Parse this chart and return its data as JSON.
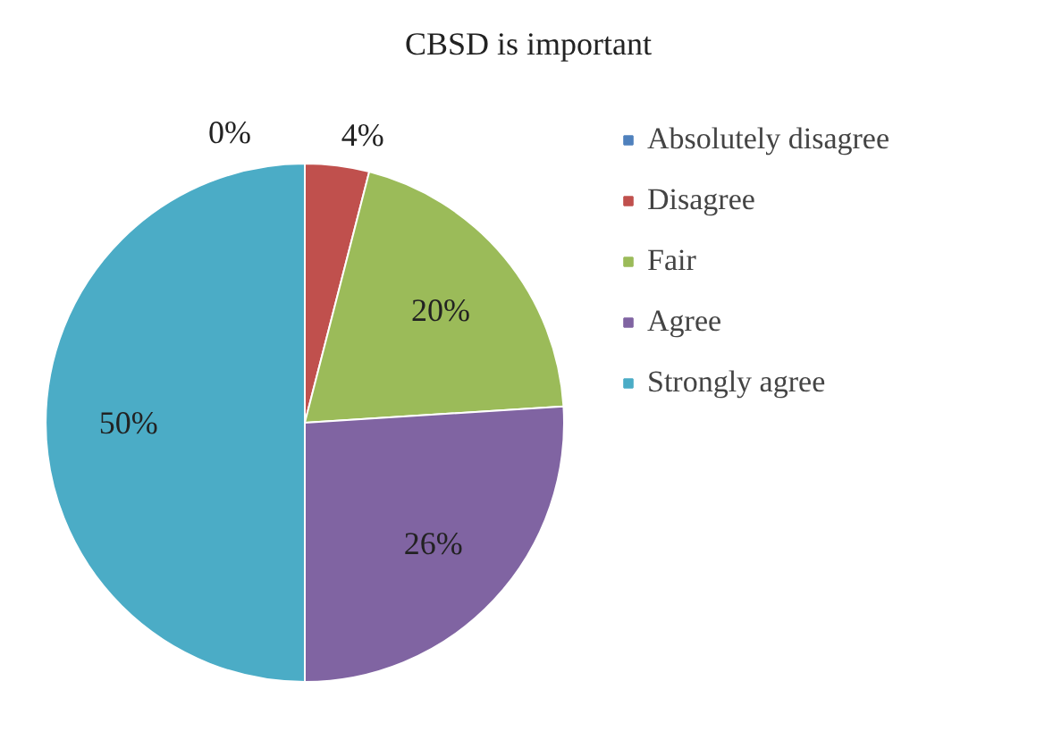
{
  "chart_data": {
    "type": "pie",
    "title": "CBSD is important",
    "categories": [
      "Absolutely disagree",
      "Disagree",
      "Fair",
      "Agree",
      "Strongly agree"
    ],
    "values": [
      0,
      4,
      20,
      26,
      50
    ],
    "colors": [
      "#4f81bd",
      "#c0504d",
      "#9bbb59",
      "#8064a2",
      "#4bacc6"
    ],
    "value_labels": [
      "0%",
      "4%",
      "20%",
      "26%",
      "50%"
    ],
    "legend": "right"
  }
}
